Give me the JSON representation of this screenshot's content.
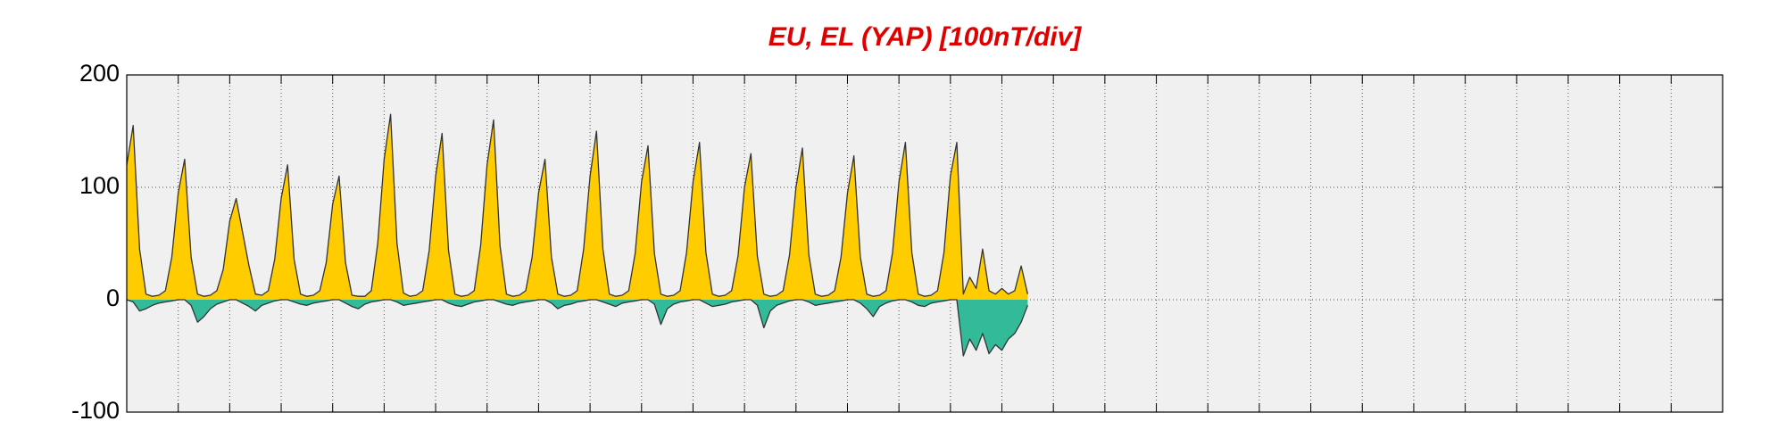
{
  "chart_data": {
    "type": "area",
    "title": "EU, EL (YAP)  [100nT/div]",
    "x": [
      0,
      0.125,
      0.25,
      0.375,
      0.5,
      0.625,
      0.75,
      0.875,
      1,
      1.125,
      1.25,
      1.375,
      1.5,
      1.625,
      1.75,
      1.875,
      2,
      2.125,
      2.25,
      2.375,
      2.5,
      2.625,
      2.75,
      2.875,
      3,
      3.125,
      3.25,
      3.375,
      3.5,
      3.625,
      3.75,
      3.875,
      4,
      4.125,
      4.25,
      4.375,
      4.5,
      4.625,
      4.75,
      4.875,
      5,
      5.125,
      5.25,
      5.375,
      5.5,
      5.625,
      5.75,
      5.875,
      6,
      6.125,
      6.25,
      6.375,
      6.5,
      6.625,
      6.75,
      6.875,
      7,
      7.125,
      7.25,
      7.375,
      7.5,
      7.625,
      7.75,
      7.875,
      8,
      8.125,
      8.25,
      8.375,
      8.5,
      8.625,
      8.75,
      8.875,
      9,
      9.125,
      9.25,
      9.375,
      9.5,
      9.625,
      9.75,
      9.875,
      10,
      10.125,
      10.25,
      10.375,
      10.5,
      10.625,
      10.75,
      10.875,
      11,
      11.125,
      11.25,
      11.375,
      11.5,
      11.625,
      11.75,
      11.875,
      12,
      12.125,
      12.25,
      12.375,
      12.5,
      12.625,
      12.75,
      12.875,
      13,
      13.125,
      13.25,
      13.375,
      13.5,
      13.625,
      13.75,
      13.875,
      14,
      14.125,
      14.25,
      14.375,
      14.5,
      14.625,
      14.75,
      14.875,
      15,
      15.125,
      15.25,
      15.375,
      15.5,
      15.625,
      15.75,
      15.875,
      16,
      16.125,
      16.25,
      16.375,
      16.5,
      16.625,
      16.75,
      16.875,
      17,
      17.125,
      17.25,
      17.375,
      17.5
    ],
    "series": [
      {
        "color": "#ffcc00",
        "values": [
          120,
          155,
          45,
          5,
          3,
          4,
          8,
          38,
          95,
          125,
          38,
          5,
          3,
          4,
          8,
          27,
          70,
          90,
          60,
          30,
          5,
          4,
          8,
          36,
          90,
          120,
          36,
          5,
          3,
          4,
          8,
          33,
          85,
          110,
          33,
          4,
          3,
          3,
          8,
          50,
          125,
          165,
          50,
          6,
          3,
          4,
          8,
          44,
          110,
          148,
          44,
          5,
          3,
          4,
          8,
          48,
          120,
          160,
          48,
          5,
          3,
          4,
          8,
          38,
          95,
          125,
          38,
          5,
          3,
          4,
          8,
          45,
          110,
          150,
          45,
          5,
          3,
          4,
          8,
          41,
          105,
          137,
          41,
          5,
          3,
          4,
          8,
          42,
          105,
          140,
          42,
          5,
          3,
          4,
          8,
          39,
          100,
          130,
          39,
          5,
          3,
          4,
          8,
          40,
          100,
          135,
          40,
          5,
          3,
          4,
          8,
          38,
          95,
          128,
          38,
          5,
          3,
          4,
          8,
          42,
          105,
          140,
          42,
          5,
          3,
          4,
          8,
          42,
          110,
          140,
          5,
          20,
          10,
          45,
          8,
          5,
          10,
          5,
          8,
          30,
          5
        ]
      },
      {
        "color": "#33bb99",
        "values": [
          0,
          -2,
          -10,
          -8,
          -5,
          -3,
          -2,
          -1,
          0,
          0,
          -5,
          -20,
          -15,
          -8,
          -4,
          -2,
          0,
          0,
          -3,
          -6,
          -10,
          -5,
          -3,
          -1,
          0,
          0,
          -2,
          -4,
          -5,
          -3,
          -2,
          -1,
          0,
          0,
          -3,
          -6,
          -8,
          -4,
          -2,
          -1,
          0,
          0,
          -2,
          -5,
          -4,
          -3,
          -2,
          -1,
          0,
          0,
          -3,
          -5,
          -6,
          -4,
          -2,
          -1,
          0,
          0,
          -2,
          -4,
          -5,
          -3,
          -2,
          -1,
          0,
          0,
          -3,
          -8,
          -5,
          -4,
          -2,
          -1,
          0,
          0,
          -2,
          -4,
          -6,
          -3,
          -2,
          -1,
          0,
          0,
          -4,
          -22,
          -8,
          -4,
          -2,
          -1,
          0,
          0,
          -3,
          -6,
          -5,
          -4,
          -2,
          -1,
          0,
          0,
          -5,
          -25,
          -10,
          -5,
          -3,
          -1,
          0,
          0,
          -2,
          -5,
          -4,
          -3,
          -2,
          -1,
          0,
          0,
          -3,
          -8,
          -15,
          -6,
          -3,
          -1,
          0,
          0,
          -2,
          -5,
          -6,
          -3,
          -2,
          -1,
          0,
          0,
          -50,
          -35,
          -45,
          -30,
          -48,
          -40,
          -45,
          -35,
          -30,
          -20,
          -5
        ]
      }
    ],
    "xlim": [
      0,
      31
    ],
    "xticks": [
      0,
      1,
      2,
      3,
      4,
      5,
      6,
      7,
      8,
      9,
      10,
      11,
      12,
      13,
      14,
      15,
      16,
      17,
      18,
      19,
      20,
      21,
      22,
      23,
      24,
      25,
      26,
      27,
      28,
      29,
      30,
      31
    ],
    "ylim": [
      -100,
      200
    ],
    "yticks": [
      -100,
      0,
      100,
      200
    ],
    "grid": true
  }
}
